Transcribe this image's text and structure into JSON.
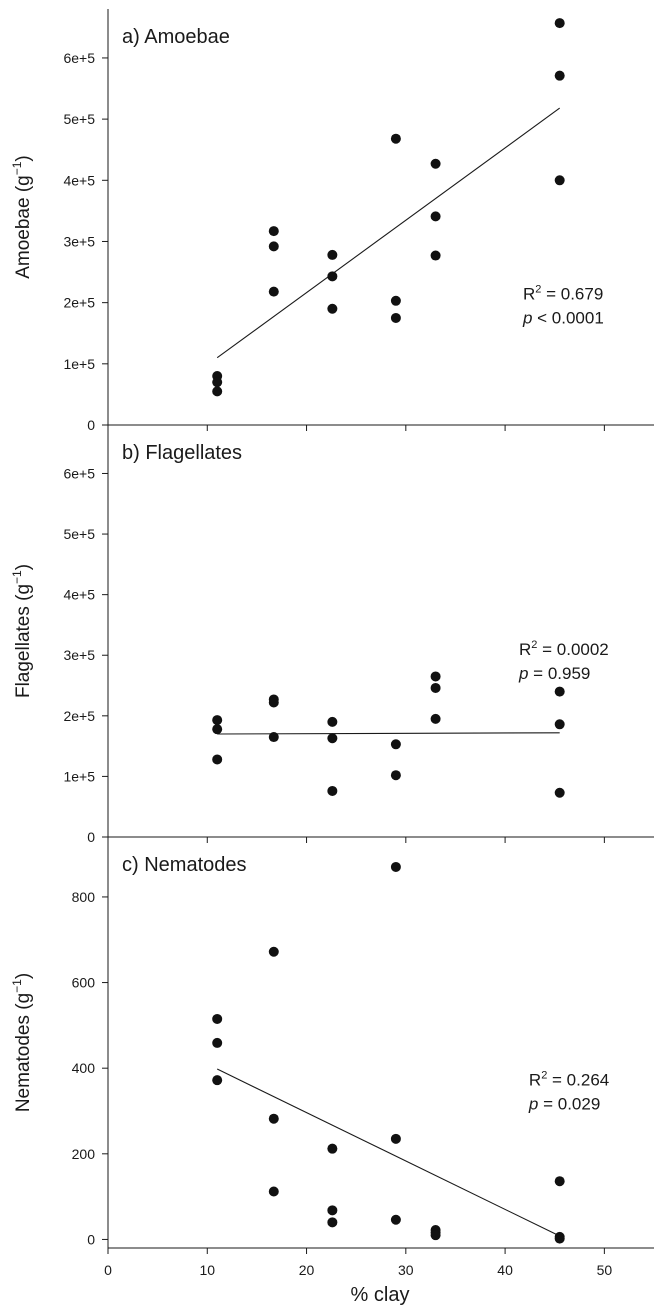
{
  "figure": {
    "xlabel": "% clay",
    "x_ticks": [
      0,
      10,
      20,
      30,
      40,
      50
    ]
  },
  "chart_data": [
    {
      "type": "scatter",
      "title": "a) Amoebae",
      "ylabel_base": "Amoebae (g",
      "ylabel_sup": "−1",
      "ylabel_close": ")",
      "xlim": [
        0,
        55
      ],
      "ylim": [
        0,
        680000
      ],
      "x_ticks": [
        0,
        10,
        20,
        30,
        40,
        50
      ],
      "y_ticks": [
        {
          "value": 0,
          "label": "0"
        },
        {
          "value": 100000,
          "label": "1e+5"
        },
        {
          "value": 200000,
          "label": "2e+5"
        },
        {
          "value": 300000,
          "label": "3e+5"
        },
        {
          "value": 400000,
          "label": "4e+5"
        },
        {
          "value": 500000,
          "label": "5e+5"
        },
        {
          "value": 600000,
          "label": "6e+5"
        }
      ],
      "points": [
        {
          "x": 11,
          "y": 80000
        },
        {
          "x": 11,
          "y": 70000
        },
        {
          "x": 11,
          "y": 55000
        },
        {
          "x": 16.7,
          "y": 317000
        },
        {
          "x": 16.7,
          "y": 292000
        },
        {
          "x": 16.7,
          "y": 218000
        },
        {
          "x": 22.6,
          "y": 278000
        },
        {
          "x": 22.6,
          "y": 243000
        },
        {
          "x": 22.6,
          "y": 190000
        },
        {
          "x": 29,
          "y": 468000
        },
        {
          "x": 29,
          "y": 203000
        },
        {
          "x": 29,
          "y": 175000
        },
        {
          "x": 33,
          "y": 427000
        },
        {
          "x": 33,
          "y": 341000
        },
        {
          "x": 33,
          "y": 277000
        },
        {
          "x": 45.5,
          "y": 657000
        },
        {
          "x": 45.5,
          "y": 571000
        },
        {
          "x": 45.5,
          "y": 400000
        }
      ],
      "regression": {
        "x": [
          11,
          45.5
        ],
        "y": [
          110000,
          518000
        ]
      },
      "stats": {
        "r2_prefix": "R",
        "r2_sup": "2",
        "r2_value": " = 0.679",
        "p_symbol": "p",
        "p_value": " < 0.0001",
        "x": 41.8,
        "y": 205000
      }
    },
    {
      "type": "scatter",
      "title": "b) Flagellates",
      "ylabel_base": "Flagellates (g",
      "ylabel_sup": "−1",
      "ylabel_close": ")",
      "xlim": [
        0,
        55
      ],
      "ylim": [
        0,
        680000
      ],
      "x_ticks": [
        0,
        10,
        20,
        30,
        40,
        50
      ],
      "y_ticks": [
        {
          "value": 0,
          "label": "0"
        },
        {
          "value": 100000,
          "label": "1e+5"
        },
        {
          "value": 200000,
          "label": "2e+5"
        },
        {
          "value": 300000,
          "label": "3e+5"
        },
        {
          "value": 400000,
          "label": "4e+5"
        },
        {
          "value": 500000,
          "label": "5e+5"
        },
        {
          "value": 600000,
          "label": "6e+5"
        }
      ],
      "points": [
        {
          "x": 11,
          "y": 193000
        },
        {
          "x": 11,
          "y": 178000
        },
        {
          "x": 11,
          "y": 128000
        },
        {
          "x": 16.7,
          "y": 227000
        },
        {
          "x": 16.7,
          "y": 222000
        },
        {
          "x": 16.7,
          "y": 165000
        },
        {
          "x": 22.6,
          "y": 190000
        },
        {
          "x": 22.6,
          "y": 163000
        },
        {
          "x": 22.6,
          "y": 76000
        },
        {
          "x": 29,
          "y": 153000
        },
        {
          "x": 29,
          "y": 102000
        },
        {
          "x": 33,
          "y": 265000
        },
        {
          "x": 33,
          "y": 246000
        },
        {
          "x": 33,
          "y": 195000
        },
        {
          "x": 45.5,
          "y": 240000
        },
        {
          "x": 45.5,
          "y": 186000
        },
        {
          "x": 45.5,
          "y": 73000
        }
      ],
      "regression": {
        "x": [
          11,
          45.5
        ],
        "y": [
          170000,
          172000
        ]
      },
      "stats": {
        "r2_prefix": "R",
        "r2_sup": "2",
        "r2_value": " = 0.0002",
        "p_symbol": "p",
        "p_value": " =  0.959",
        "x": 41.4,
        "y": 300000
      }
    },
    {
      "type": "scatter",
      "title": "c) Nematodes",
      "ylabel_base": "Nematodes (g",
      "ylabel_sup": "−1",
      "ylabel_close": ")",
      "xlim": [
        0,
        55
      ],
      "ylim": [
        -20,
        940
      ],
      "x_ticks": [
        0,
        10,
        20,
        30,
        40,
        50
      ],
      "y_ticks": [
        {
          "value": 0,
          "label": "0"
        },
        {
          "value": 200,
          "label": "200"
        },
        {
          "value": 400,
          "label": "400"
        },
        {
          "value": 600,
          "label": "600"
        },
        {
          "value": 800,
          "label": "800"
        }
      ],
      "points": [
        {
          "x": 11,
          "y": 515
        },
        {
          "x": 11,
          "y": 459
        },
        {
          "x": 11,
          "y": 372
        },
        {
          "x": 16.7,
          "y": 672
        },
        {
          "x": 16.7,
          "y": 282
        },
        {
          "x": 16.7,
          "y": 112
        },
        {
          "x": 22.6,
          "y": 212
        },
        {
          "x": 22.6,
          "y": 68
        },
        {
          "x": 22.6,
          "y": 40
        },
        {
          "x": 29,
          "y": 870
        },
        {
          "x": 29,
          "y": 235
        },
        {
          "x": 29,
          "y": 46
        },
        {
          "x": 33,
          "y": 22
        },
        {
          "x": 33,
          "y": 16
        },
        {
          "x": 33,
          "y": 10
        },
        {
          "x": 45.5,
          "y": 136
        },
        {
          "x": 45.5,
          "y": 6
        },
        {
          "x": 45.5,
          "y": 2
        }
      ],
      "regression": {
        "x": [
          11,
          45.5
        ],
        "y": [
          398,
          8
        ]
      },
      "stats": {
        "r2_prefix": "R",
        "r2_sup": "2",
        "r2_value": " = 0.264",
        "p_symbol": "p",
        "p_value": " = 0.029",
        "x": 42.4,
        "y": 360
      }
    }
  ]
}
